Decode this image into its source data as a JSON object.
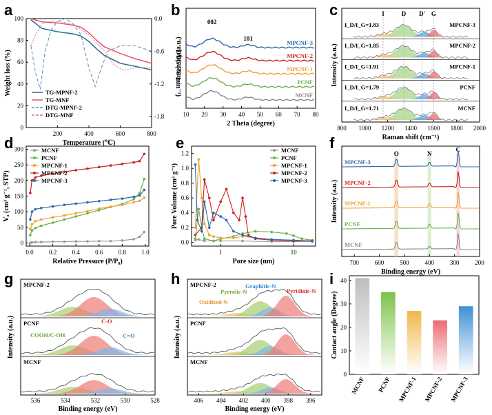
{
  "chart_data": [
    {
      "id": "a",
      "panel_label": "a",
      "type": "line",
      "xlabel": "Temperature (℃)",
      "ylabel": "Weight loss (%)",
      "ylabel_right": "DTG (% min⁻¹)",
      "xlim": [
        0,
        800
      ],
      "ylim": [
        0,
        100
      ],
      "ylim_right": [
        -2.0,
        0.0
      ],
      "xticks": [
        "200",
        "400",
        "600",
        "800"
      ],
      "yticks": [
        "0",
        "20",
        "40",
        "60",
        "80",
        "100"
      ],
      "yticks_right": [
        "0.0",
        "-0.6",
        "-1.2",
        "-1.8"
      ],
      "legend": [
        "TG-MPNF-2",
        "TG-MNF",
        "DTG-MPNF-2",
        "DTG-MNF"
      ],
      "series": [
        {
          "name": "TG-MPNF-2",
          "color": "#2a6a8a",
          "x": [
            30,
            100,
            200,
            300,
            350,
            400,
            450,
            500,
            600,
            700,
            800
          ],
          "y": [
            99,
            91,
            88,
            86,
            84,
            79,
            72,
            66,
            59,
            56,
            53
          ]
        },
        {
          "name": "TG-MNF",
          "color": "#e8546c",
          "x": [
            30,
            100,
            200,
            300,
            350,
            400,
            450,
            500,
            600,
            700,
            800
          ],
          "y": [
            100,
            97,
            96,
            94,
            92,
            87,
            80,
            74,
            68,
            63,
            59
          ]
        },
        {
          "name": "DTG-MPNF-2",
          "color": "#5a8ab8",
          "x": [
            30,
            60,
            90,
            120,
            160,
            200,
            250,
            300,
            350,
            400,
            440,
            480,
            520,
            600,
            700,
            800
          ],
          "y": [
            -0.5,
            -1.0,
            -1.3,
            -0.6,
            -0.2,
            -0.05,
            0.0,
            -0.1,
            -0.3,
            -0.9,
            -1.25,
            -0.9,
            -0.6,
            -0.5,
            -0.5,
            -0.6
          ]
        },
        {
          "name": "DTG-MNF",
          "color": "#d1718c",
          "x": [
            30,
            60,
            100,
            150,
            200,
            300,
            400,
            500,
            560,
            620,
            700,
            800
          ],
          "y": [
            -0.5,
            -0.3,
            -0.1,
            -0.05,
            -0.05,
            -0.1,
            -0.3,
            -0.6,
            -0.85,
            -0.95,
            -0.9,
            -0.9
          ]
        }
      ]
    },
    {
      "id": "b",
      "panel_label": "b",
      "type": "line",
      "xlabel": "2 Theta (degree)",
      "ylabel": "Intensity (a.u.)",
      "xlim": [
        10,
        80
      ],
      "xticks": [
        "10",
        "20",
        "30",
        "40",
        "50",
        "60",
        "70",
        "80"
      ],
      "annotations": [
        "002",
        "101"
      ],
      "series": [
        {
          "name": "MPCNF-3",
          "color": "#2a6aa8",
          "offset": 4
        },
        {
          "name": "MPCNF-2",
          "color": "#c8211e",
          "offset": 3
        },
        {
          "name": "MPCNF-1",
          "color": "#f0a030",
          "offset": 2
        },
        {
          "name": "PCNF",
          "color": "#6ab04c",
          "offset": 1
        },
        {
          "name": "MCNF",
          "color": "#888888",
          "offset": 0
        }
      ]
    },
    {
      "id": "c",
      "panel_label": "c",
      "type": "line",
      "xlabel": "Raman shift (cm⁻¹)",
      "ylabel": "Intensity (a.u.)",
      "xlim": [
        800,
        2000
      ],
      "xticks": [
        "800",
        "1000",
        "1200",
        "1400",
        "1600",
        "1800",
        "2000"
      ],
      "band_labels": [
        "I",
        "D",
        "D'",
        "G"
      ],
      "series": [
        {
          "name": "MPCNF-3",
          "ratio": "I_D/I_G=1.83"
        },
        {
          "name": "MPCNF-2",
          "ratio": "I_D/I_G=1.85"
        },
        {
          "name": "MPCNF-1",
          "ratio": "I_D/I_G=1.91"
        },
        {
          "name": "PCNF",
          "ratio": "I_D/I_G=1.79"
        },
        {
          "name": "MCNF",
          "ratio": "I_D/I_G=1.71"
        }
      ]
    },
    {
      "id": "d",
      "panel_label": "d",
      "type": "line",
      "xlabel": "Relative Pressure  (P/P₀)",
      "ylabel": "Vₐ (cm³ g⁻¹, STP)",
      "xlim": [
        0,
        1
      ],
      "ylim": [
        0,
        300
      ],
      "xticks": [
        "0.0",
        "0.2",
        "0.4",
        "0.6",
        "0.8",
        "1.0"
      ],
      "yticks": [
        "0",
        "50",
        "100",
        "150",
        "200",
        "250",
        "300"
      ],
      "series": [
        {
          "name": "MCNF",
          "color": "#9a9a9a",
          "x": [
            0.005,
            0.02,
            0.05,
            0.1,
            0.2,
            0.3,
            0.4,
            0.5,
            0.6,
            0.7,
            0.8,
            0.9,
            0.95,
            0.99
          ],
          "y": [
            0,
            2,
            3,
            3,
            4,
            4,
            5,
            5,
            6,
            6,
            8,
            12,
            20,
            35
          ]
        },
        {
          "name": "PCNF",
          "color": "#6ab04c",
          "x": [
            0.005,
            0.02,
            0.05,
            0.1,
            0.2,
            0.3,
            0.4,
            0.5,
            0.6,
            0.7,
            0.8,
            0.9,
            0.95,
            0.99
          ],
          "y": [
            25,
            40,
            48,
            55,
            65,
            75,
            85,
            95,
            105,
            115,
            125,
            140,
            160,
            205
          ]
        },
        {
          "name": "MPCNF-1",
          "color": "#f0a030",
          "x": [
            0.005,
            0.02,
            0.05,
            0.1,
            0.2,
            0.3,
            0.4,
            0.5,
            0.6,
            0.7,
            0.8,
            0.9,
            0.95,
            0.99
          ],
          "y": [
            45,
            60,
            70,
            75,
            82,
            88,
            95,
            102,
            110,
            116,
            122,
            130,
            135,
            145
          ]
        },
        {
          "name": "MPCNF-2",
          "color": "#c8211e",
          "x": [
            0.005,
            0.02,
            0.05,
            0.1,
            0.2,
            0.3,
            0.4,
            0.5,
            0.6,
            0.7,
            0.8,
            0.9,
            0.95,
            0.99
          ],
          "y": [
            160,
            200,
            210,
            215,
            222,
            228,
            233,
            238,
            243,
            248,
            253,
            258,
            262,
            285
          ]
        },
        {
          "name": "MPCNF-3",
          "color": "#2a6aa8",
          "x": [
            0.005,
            0.02,
            0.05,
            0.1,
            0.2,
            0.3,
            0.4,
            0.5,
            0.6,
            0.7,
            0.8,
            0.9,
            0.95,
            0.99
          ],
          "y": [
            75,
            100,
            108,
            112,
            117,
            122,
            126,
            130,
            134,
            138,
            142,
            148,
            152,
            170
          ]
        }
      ]
    },
    {
      "id": "e",
      "panel_label": "e",
      "type": "line",
      "xscale": "log",
      "xlabel": "Pore size (nm)",
      "ylabel": "Pore Volume (cm³ g⁻¹)",
      "xlim": [
        0.4,
        20
      ],
      "ylim": [
        0,
        1.3
      ],
      "xticks": [
        "1",
        "10"
      ],
      "yticks": [
        "0.0",
        "0.2",
        "0.4",
        "0.6",
        "0.8",
        "1.0",
        "1.2"
      ],
      "series": [
        {
          "name": "MCNF",
          "color": "#9a9a9a",
          "x": [
            0.45,
            0.5,
            0.6,
            0.8,
            1,
            2,
            5,
            10,
            18
          ],
          "y": [
            0.03,
            0.04,
            0.02,
            0.02,
            0.02,
            0.02,
            0.01,
            0.01,
            0.01
          ]
        },
        {
          "name": "PCNF",
          "color": "#6ab04c",
          "x": [
            0.45,
            0.5,
            0.55,
            0.6,
            0.8,
            1,
            1.5,
            2,
            3,
            5,
            8,
            10,
            13,
            18
          ],
          "y": [
            0.05,
            0.45,
            0.2,
            0.05,
            0.02,
            0.05,
            0.08,
            0.12,
            0.15,
            0.14,
            0.12,
            0.09,
            0.05,
            0.03
          ]
        },
        {
          "name": "MPCNF-1",
          "color": "#f0a030",
          "x": [
            0.45,
            0.5,
            0.55,
            0.6,
            0.7,
            0.8,
            1,
            1.5,
            2,
            3,
            5,
            10,
            18
          ],
          "y": [
            0.2,
            1.12,
            0.6,
            0.25,
            0.1,
            0.08,
            0.06,
            0.06,
            0.08,
            0.06,
            0.04,
            0.03,
            0.02
          ]
        },
        {
          "name": "MPCNF-2",
          "color": "#c8211e",
          "x": [
            0.45,
            0.55,
            0.6,
            0.7,
            0.8,
            1,
            1.2,
            1.5,
            1.8,
            2,
            2.2,
            2.4,
            3,
            5,
            10,
            18
          ],
          "y": [
            0.1,
            0.2,
            0.85,
            0.6,
            0.3,
            0.55,
            0.72,
            0.4,
            0.3,
            0.6,
            0.35,
            0.1,
            0.05,
            0.03,
            0.02,
            0.02
          ]
        },
        {
          "name": "MPCNF-3",
          "color": "#2a6aa8",
          "x": [
            0.45,
            0.48,
            0.55,
            0.6,
            0.7,
            0.8,
            1,
            1.2,
            1.5,
            2,
            3,
            5,
            10,
            18
          ],
          "y": [
            1.05,
            0.3,
            0.15,
            0.55,
            0.2,
            0.4,
            0.35,
            0.3,
            0.15,
            0.1,
            0.06,
            0.04,
            0.03,
            0.02
          ]
        }
      ]
    },
    {
      "id": "f",
      "panel_label": "f",
      "type": "line",
      "xlabel": "Binding energy (eV)",
      "ylabel": "Intensity (a.u.)",
      "xlim": [
        750,
        200
      ],
      "xticks": [
        "700",
        "600",
        "500",
        "400",
        "300",
        "200"
      ],
      "annotations": [
        "O",
        "N",
        "C"
      ],
      "series": [
        {
          "name": "MPCNF-3",
          "color": "#2a6aa8"
        },
        {
          "name": "MPCNF-2",
          "color": "#c8211e"
        },
        {
          "name": "MPCNF-1",
          "color": "#f0a030"
        },
        {
          "name": "PCNF",
          "color": "#6ab04c"
        },
        {
          "name": "MCNF",
          "color": "#888888"
        }
      ]
    },
    {
      "id": "g",
      "panel_label": "g",
      "type": "area",
      "xlabel": "Binding energy (eV)",
      "ylabel": "Intensity (a.u.)",
      "xlim": [
        537,
        528
      ],
      "xticks": [
        "536",
        "534",
        "532",
        "530",
        "528"
      ],
      "components": [
        "COOH/C-OH",
        "C-O",
        "C=O"
      ],
      "sub_panels": [
        "MPCNF-2",
        "PCNF",
        "MCNF"
      ]
    },
    {
      "id": "h",
      "panel_label": "h",
      "type": "area",
      "xlabel": "Binding energy (eV)",
      "ylabel": "Intensity (a.u.)",
      "xlim": [
        407,
        395
      ],
      "xticks": [
        "406",
        "404",
        "402",
        "400",
        "398",
        "396"
      ],
      "components": [
        "Oxidized-N",
        "Pyrrolic-N",
        "Graphitic-N",
        "Pyridinic-N"
      ],
      "sub_panels": [
        "MPCNF-2",
        "PCNF",
        "MCNF"
      ]
    },
    {
      "id": "i",
      "panel_label": "i",
      "type": "bar",
      "ylabel": "Contact angle (Degree)",
      "ylim": [
        0,
        42
      ],
      "yticks": [
        "0",
        "10",
        "20",
        "30",
        "40"
      ],
      "categories": [
        "MCNF",
        "PCNF",
        "MPCNF-1",
        "MPCNF-2",
        "MPCNF-3"
      ],
      "values": [
        41,
        35,
        27,
        23,
        29
      ],
      "colors": [
        "#bdbdbd",
        "#7cc24a",
        "#f2b64a",
        "#ea6b70",
        "#3e8fd6"
      ]
    }
  ]
}
